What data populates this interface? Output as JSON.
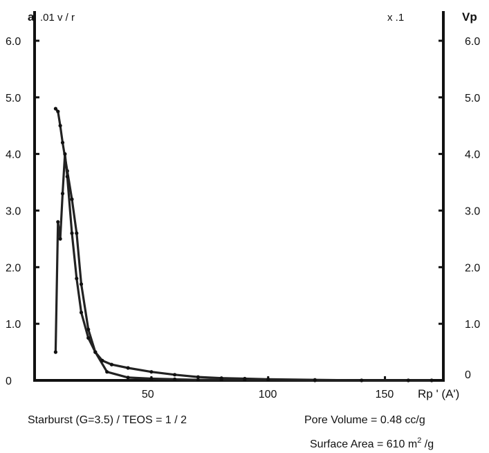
{
  "header": {
    "left_label": "a",
    "left_units": ".01 v / r",
    "right_label": "Vp",
    "right_factor": "x .1"
  },
  "footer": {
    "caption": "Starburst (G=3.5) / TEOS = 1 / 2",
    "pore_volume": "Pore Volume = 0.48 cc/g",
    "surface_area_prefix": "Surface Area = 610 m",
    "surface_area_sup": "2",
    "surface_area_suffix": " /g"
  },
  "chart_data": {
    "type": "line",
    "xlabel": "Rp ' (A')",
    "xlim": [
      0,
      175
    ],
    "ylim": [
      0,
      6.5
    ],
    "x_ticks": [
      50,
      100,
      150
    ],
    "y_ticks_left": [
      {
        "value": 0,
        "label": "0"
      },
      {
        "value": 1.0,
        "label": "1.0"
      },
      {
        "value": 2.0,
        "label": "2.0"
      },
      {
        "value": 3.0,
        "label": "3.0"
      },
      {
        "value": 4.0,
        "label": "4.0"
      },
      {
        "value": 5.0,
        "label": "5.0"
      },
      {
        "value": 6.0,
        "label": "6.0"
      }
    ],
    "y_ticks_right": [
      {
        "value": 0,
        "label": "0"
      },
      {
        "value": 1.0,
        "label": "1.0"
      },
      {
        "value": 2.0,
        "label": "2.0"
      },
      {
        "value": 3.0,
        "label": "3.0"
      },
      {
        "value": 4.0,
        "label": "4.0"
      },
      {
        "value": 5.0,
        "label": "5.0"
      },
      {
        "value": 6.0,
        "label": "6.0"
      }
    ],
    "series": [
      {
        "x": [
          9,
          10,
          11,
          12,
          14,
          16,
          18,
          20,
          23,
          26,
          31,
          40,
          50,
          60,
          70,
          80,
          90,
          100,
          120,
          140,
          160,
          170
        ],
        "values": [
          4.8,
          4.75,
          4.5,
          4.2,
          3.7,
          3.2,
          2.6,
          1.7,
          0.9,
          0.5,
          0.15,
          0.05,
          0.03,
          0.02,
          0.01,
          0.01,
          0.01,
          0.01,
          0.0,
          0.0,
          0.0,
          0.0
        ]
      },
      {
        "x": [
          9,
          10,
          11,
          12,
          13,
          14,
          16,
          18,
          20,
          23,
          26,
          29,
          33,
          40,
          50,
          60,
          70,
          80,
          90,
          100,
          120,
          140,
          160,
          170
        ],
        "values": [
          0.5,
          2.8,
          2.5,
          3.3,
          4.0,
          3.6,
          2.6,
          1.8,
          1.2,
          0.75,
          0.5,
          0.35,
          0.28,
          0.22,
          0.15,
          0.1,
          0.06,
          0.04,
          0.03,
          0.02,
          0.01,
          0.0,
          0.0,
          0.0
        ]
      }
    ]
  }
}
